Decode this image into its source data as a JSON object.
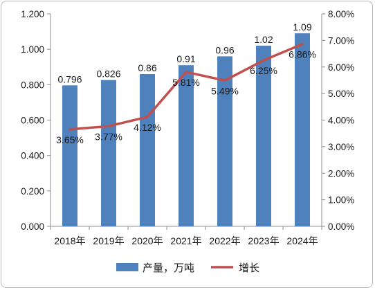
{
  "chart_data": {
    "type": "bar",
    "categories": [
      "2018年",
      "2019年",
      "2020年",
      "2021年",
      "2022年",
      "2023年",
      "2024年"
    ],
    "series": [
      {
        "name": "产量，万吨",
        "type": "bar",
        "axis": "left",
        "color": "#4f81bd",
        "values": [
          0.796,
          0.826,
          0.86,
          0.91,
          0.96,
          1.02,
          1.09
        ],
        "labels": [
          "0.796",
          "0.826",
          "0.86",
          "0.91",
          "0.96",
          "1.02",
          "1.09"
        ]
      },
      {
        "name": "增长",
        "type": "line",
        "axis": "right",
        "color": "#c0504d",
        "values": [
          3.65,
          3.77,
          4.12,
          5.81,
          5.49,
          6.25,
          6.86
        ],
        "labels": [
          "3.65%",
          "3.77%",
          "4.12%",
          "5.81%",
          "5.49%",
          "6.25%",
          "6.86%"
        ]
      }
    ],
    "y_left": {
      "ylim": [
        0,
        1.2
      ],
      "ticks": [
        0,
        0.2,
        0.4,
        0.6,
        0.8,
        1.0,
        1.2
      ],
      "tick_labels": [
        "0.000",
        "0.200",
        "0.400",
        "0.600",
        "0.800",
        "1.000",
        "1.200"
      ]
    },
    "y_right": {
      "ylim": [
        0,
        8
      ],
      "ticks": [
        0,
        1,
        2,
        3,
        4,
        5,
        6,
        7,
        8
      ],
      "tick_labels": [
        "0.00%",
        "1.00%",
        "2.00%",
        "3.00%",
        "4.00%",
        "5.00%",
        "6.00%",
        "7.00%",
        "8.00%"
      ]
    },
    "grid": false,
    "legend": "bottom"
  }
}
